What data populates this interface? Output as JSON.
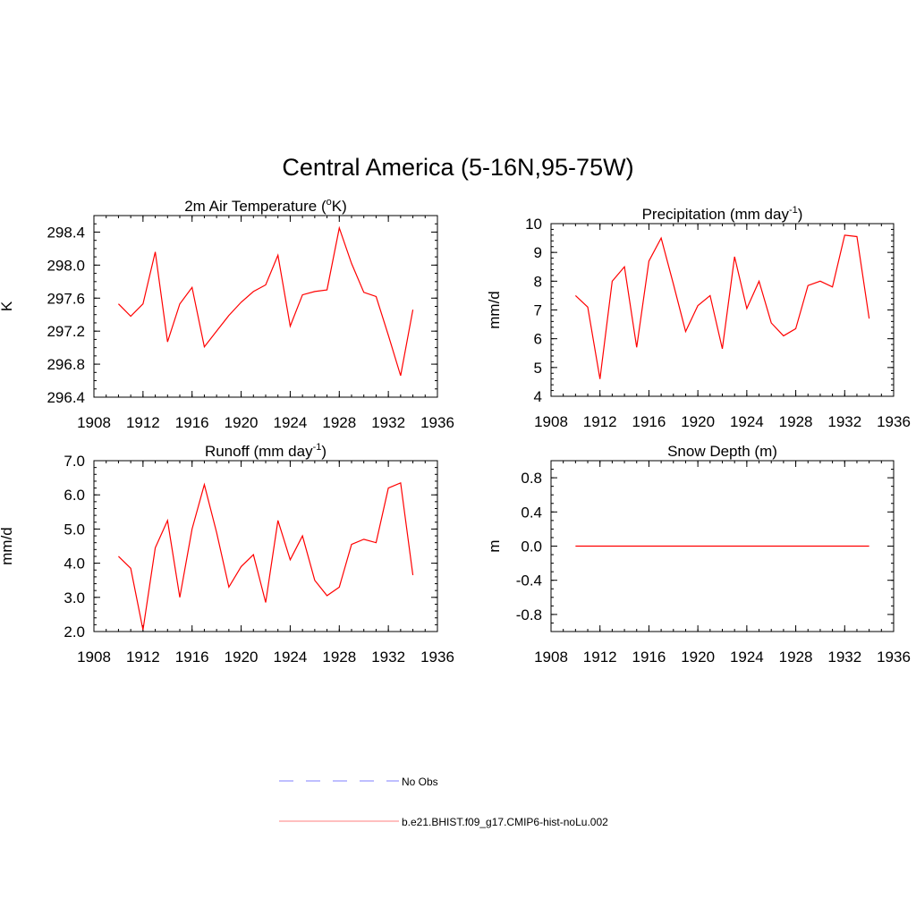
{
  "figure": {
    "title": "Central America (5-16N,95-75W)"
  },
  "chart_data": [
    {
      "type": "line",
      "title_parts": [
        "2m Air Temperature (",
        "o",
        "K)"
      ],
      "title_style": [
        "normal",
        "sup",
        "normal"
      ],
      "ylabel": "K",
      "xlim": [
        1908,
        1936
      ],
      "ylim": [
        296.4,
        298.6
      ],
      "xticks": [
        1908,
        1912,
        1916,
        1920,
        1924,
        1928,
        1932,
        1936
      ],
      "xminor": 1,
      "yticks": [
        296.4,
        296.8,
        297.2,
        297.6,
        298.0,
        298.4
      ],
      "ytick_labels": [
        "296.4",
        "296.8",
        "297.2",
        "297.6",
        "298.0",
        "298.4"
      ],
      "yminor": 0.1,
      "series": [
        {
          "color": "#ff0000",
          "x": [
            1910,
            1911,
            1912,
            1913,
            1914,
            1915,
            1916,
            1917,
            1918,
            1919,
            1920,
            1921,
            1922,
            1923,
            1924,
            1925,
            1926,
            1927,
            1928,
            1929,
            1930,
            1931,
            1932,
            1933,
            1934
          ],
          "y": [
            297.53,
            297.38,
            297.53,
            298.16,
            297.07,
            297.53,
            297.73,
            297.01,
            297.2,
            297.39,
            297.55,
            297.68,
            297.76,
            298.12,
            297.26,
            297.64,
            297.68,
            297.7,
            298.45,
            298.02,
            297.67,
            297.62,
            297.15,
            296.66,
            297.46
          ]
        }
      ]
    },
    {
      "type": "line",
      "title_parts": [
        "Precipitation (mm day",
        "-1",
        ")"
      ],
      "title_style": [
        "normal",
        "sup",
        "normal"
      ],
      "ylabel": "mm/d",
      "xlim": [
        1908,
        1936
      ],
      "ylim": [
        4,
        10
      ],
      "xticks": [
        1908,
        1912,
        1916,
        1920,
        1924,
        1928,
        1932,
        1936
      ],
      "xminor": 1,
      "yticks": [
        4,
        5,
        6,
        7,
        8,
        9,
        10
      ],
      "ytick_labels": [
        "4",
        "5",
        "6",
        "7",
        "8",
        "9",
        "10"
      ],
      "yminor": 0.2,
      "series": [
        {
          "color": "#ff0000",
          "x": [
            1910,
            1911,
            1912,
            1913,
            1914,
            1915,
            1916,
            1917,
            1918,
            1919,
            1920,
            1921,
            1922,
            1923,
            1924,
            1925,
            1926,
            1927,
            1928,
            1929,
            1930,
            1931,
            1932,
            1933,
            1934
          ],
          "y": [
            7.5,
            7.1,
            4.6,
            8.0,
            8.5,
            5.7,
            8.7,
            9.5,
            7.9,
            6.25,
            7.15,
            7.5,
            5.65,
            8.85,
            7.05,
            8.0,
            6.55,
            6.1,
            6.35,
            7.85,
            8.0,
            7.8,
            9.6,
            9.55,
            6.7
          ]
        }
      ]
    },
    {
      "type": "line",
      "title_parts": [
        "Runoff (mm day",
        "-1",
        ")"
      ],
      "title_style": [
        "normal",
        "sup",
        "normal"
      ],
      "ylabel": "mm/d",
      "xlim": [
        1908,
        1936
      ],
      "ylim": [
        2.0,
        7.0
      ],
      "xticks": [
        1908,
        1912,
        1916,
        1920,
        1924,
        1928,
        1932,
        1936
      ],
      "xminor": 1,
      "yticks": [
        2.0,
        3.0,
        4.0,
        5.0,
        6.0,
        7.0
      ],
      "ytick_labels": [
        "2.0",
        "3.0",
        "4.0",
        "5.0",
        "6.0",
        "7.0"
      ],
      "yminor": 0.2,
      "series": [
        {
          "color": "#ff0000",
          "x": [
            1910,
            1911,
            1912,
            1913,
            1914,
            1915,
            1916,
            1917,
            1918,
            1919,
            1920,
            1921,
            1922,
            1923,
            1924,
            1925,
            1926,
            1927,
            1928,
            1929,
            1930,
            1931,
            1932,
            1933,
            1934
          ],
          "y": [
            4.2,
            3.85,
            2.05,
            4.45,
            5.25,
            3.0,
            5.0,
            6.3,
            4.9,
            3.3,
            3.9,
            4.25,
            2.85,
            5.25,
            4.1,
            4.8,
            3.5,
            3.05,
            3.3,
            4.55,
            4.7,
            4.6,
            6.2,
            6.35,
            3.65
          ]
        }
      ]
    },
    {
      "type": "line",
      "title_parts": [
        "Snow Depth (m)"
      ],
      "title_style": [
        "normal"
      ],
      "ylabel": "m",
      "xlim": [
        1908,
        1936
      ],
      "ylim": [
        -1.0,
        1.0
      ],
      "xticks": [
        1908,
        1912,
        1916,
        1920,
        1924,
        1928,
        1932,
        1936
      ],
      "xminor": 1,
      "yticks": [
        -0.8,
        -0.4,
        0.0,
        0.4,
        0.8
      ],
      "ytick_labels": [
        "-0.8",
        "-0.4",
        "0.0",
        "0.4",
        "0.8"
      ],
      "yminor": 0.1,
      "series": [
        {
          "color": "#ff0000",
          "x": [
            1910,
            1934
          ],
          "y": [
            0.0,
            0.0
          ]
        }
      ]
    }
  ],
  "legend": {
    "items": [
      {
        "label": "No Obs",
        "color": "#9999ff",
        "dash": "dashed"
      },
      {
        "label": "b.e21.BHIST.f09_g17.CMIP6-hist-noLu.002",
        "color": "#ff9999",
        "dash": "solid"
      }
    ]
  }
}
